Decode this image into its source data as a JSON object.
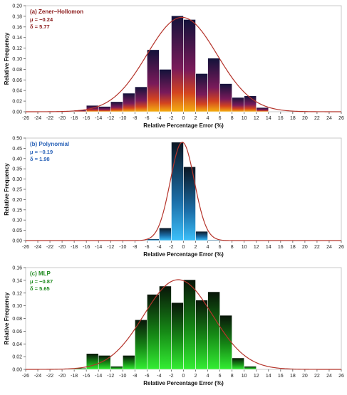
{
  "chart_data": [
    {
      "type": "bar",
      "panel_label": "(a) Zener–Hollomon",
      "mu_text": "μ = −0.24",
      "delta_text": "δ =  5.77",
      "xlabel": "Relative Percentage Error (%)",
      "ylabel": "Relative Frequency",
      "xlim": [
        -26,
        26
      ],
      "ylim": [
        0,
        0.2
      ],
      "xticks": [
        -26,
        -24,
        -22,
        -20,
        -18,
        -16,
        -14,
        -12,
        -10,
        -8,
        -6,
        -4,
        -2,
        0,
        2,
        4,
        6,
        8,
        10,
        12,
        14,
        16,
        18,
        20,
        22,
        24,
        26
      ],
      "yticks": [
        0,
        0.02,
        0.04,
        0.06,
        0.08,
        0.1,
        0.12,
        0.14,
        0.16,
        0.18,
        0.2
      ],
      "ytick_labels": [
        "0.00",
        "0.02",
        "0.04",
        "0.06",
        "0.08",
        "0.10",
        "0.12",
        "0.14",
        "0.16",
        "0.18",
        "0.20"
      ],
      "bin_width": 2,
      "bin_centers": [
        -17,
        -15,
        -13,
        -11,
        -9,
        -7,
        -5,
        -3,
        -1,
        1,
        3,
        5,
        7,
        9,
        11,
        13
      ],
      "values": [
        0.003,
        0.012,
        0.01,
        0.019,
        0.035,
        0.047,
        0.117,
        0.08,
        0.181,
        0.174,
        0.072,
        0.101,
        0.053,
        0.027,
        0.03,
        0.008
      ],
      "fit": {
        "mean": -0.24,
        "std": 5.77,
        "peak": 0.178
      },
      "fill": "gradient-purple-orange",
      "colors": {
        "top": "#12123a",
        "mid": "#8a1a55",
        "bottom": "#f2a30f",
        "curve": "#b5342b",
        "label": "#8b1a1a"
      }
    },
    {
      "type": "bar",
      "panel_label": "(b) Polynomial",
      "mu_text": "μ = −0.19",
      "delta_text": "δ =  1.98",
      "xlabel": "Relative Percentage Error (%)",
      "ylabel": "Relative Frequency",
      "xlim": [
        -26,
        26
      ],
      "ylim": [
        0,
        0.5
      ],
      "xticks": [
        -26,
        -24,
        -22,
        -20,
        -18,
        -16,
        -14,
        -12,
        -10,
        -8,
        -6,
        -4,
        -2,
        0,
        2,
        4,
        6,
        8,
        10,
        12,
        14,
        16,
        18,
        20,
        22,
        24,
        26
      ],
      "yticks": [
        0,
        0.05,
        0.1,
        0.15,
        0.2,
        0.25,
        0.3,
        0.35,
        0.4,
        0.45,
        0.5
      ],
      "ytick_labels": [
        "0.00",
        "0.05",
        "0.10",
        "0.15",
        "0.20",
        "0.25",
        "0.30",
        "0.35",
        "0.40",
        "0.45",
        "0.50"
      ],
      "bin_width": 2,
      "bin_centers": [
        -5,
        -3,
        -1,
        1,
        3,
        5
      ],
      "values": [
        0.008,
        0.062,
        0.48,
        0.36,
        0.045,
        0.004
      ],
      "fit": {
        "mean": -0.19,
        "std": 1.98,
        "peak": 0.48
      },
      "fill": "gradient-black-blue",
      "colors": {
        "top": "#0d1a2a",
        "bottom": "#35b6f5",
        "curve": "#b5342b",
        "label": "#2a63b8"
      }
    },
    {
      "type": "bar",
      "panel_label": "(c) MLP",
      "mu_text": "μ = −0.87",
      "delta_text": "δ =  5.65",
      "xlabel": "Relative Percentage Error (%)",
      "ylabel": "Relative Frequency",
      "xlim": [
        -26,
        26
      ],
      "ylim": [
        0,
        0.16
      ],
      "xticks": [
        -26,
        -24,
        -22,
        -20,
        -18,
        -16,
        -14,
        -12,
        -10,
        -8,
        -6,
        -4,
        -2,
        0,
        2,
        4,
        6,
        8,
        10,
        12,
        14,
        16,
        18,
        20,
        22,
        24,
        26
      ],
      "yticks": [
        0,
        0.02,
        0.04,
        0.06,
        0.08,
        0.1,
        0.12,
        0.14,
        0.16
      ],
      "ytick_labels": [
        "0.00",
        "0.02",
        "0.04",
        "0.06",
        "0.08",
        "0.10",
        "0.12",
        "0.14",
        "0.16"
      ],
      "bin_width": 2,
      "bin_centers": [
        -21,
        -19,
        -17,
        -15,
        -13,
        -11,
        -9,
        -7,
        -5,
        -3,
        -1,
        1,
        3,
        5,
        7,
        9,
        11
      ],
      "values": [
        0.001,
        0.001,
        0.002,
        0.025,
        0.022,
        0.005,
        0.022,
        0.078,
        0.118,
        0.131,
        0.105,
        0.141,
        0.109,
        0.122,
        0.085,
        0.018,
        0.005
      ],
      "fit": {
        "mean": -0.87,
        "std": 5.65,
        "peak": 0.141
      },
      "fill": "gradient-black-green",
      "colors": {
        "top": "#0a1a0a",
        "bottom": "#2ee82e",
        "curve": "#b5342b",
        "label": "#1f8a1f"
      }
    }
  ]
}
